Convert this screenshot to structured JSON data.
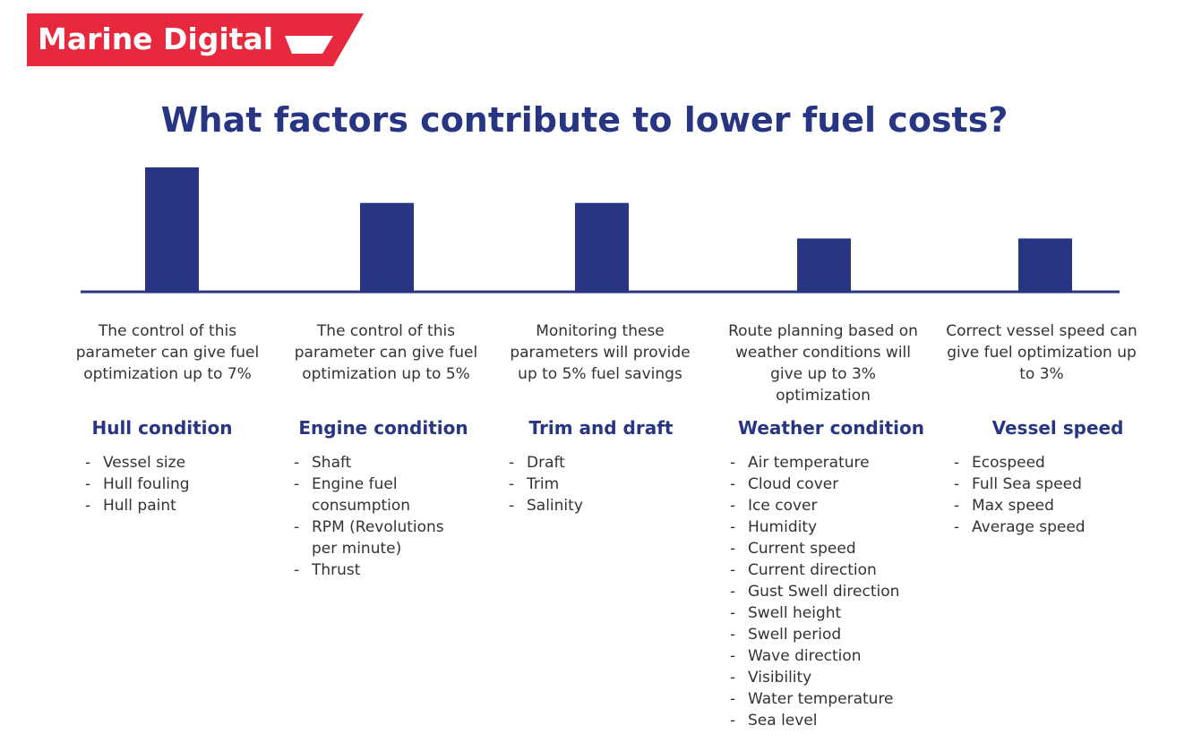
{
  "header": {
    "brand": "Marine Digital"
  },
  "chart_data": {
    "type": "bar",
    "title": "What factors contribute to lower fuel costs?",
    "categories": [
      "Hull condition",
      "Engine condition",
      "Trim and draft",
      "Weather condition",
      "Vessel speed"
    ],
    "values": [
      7,
      5,
      5,
      3,
      3
    ],
    "color": "#283583",
    "ylim": [
      0,
      7
    ],
    "descriptions": [
      "The control of this parameter can give fuel optimization up to 7%",
      "The control of this parameter can give fuel optimization up to 5%",
      "Monitoring these parameters will provide up to 5% fuel savings",
      "Route planning based on weather conditions will give up to 3% optimization",
      "Correct vessel speed can give fuel optimization up to 3%"
    ],
    "items": [
      [
        "Vessel size",
        "Hull fouling",
        "Hull paint"
      ],
      [
        "Shaft",
        "Engine fuel consumption",
        "RPM (Revolutions per minute)",
        "Thrust"
      ],
      [
        "Draft",
        "Trim",
        "Salinity"
      ],
      [
        "Air temperature",
        "Cloud cover",
        "Ice cover",
        "Humidity",
        "Current speed",
        "Current direction",
        "Gust Swell direction",
        "Swell height",
        "Swell period",
        "Wave direction",
        "Visibility",
        "Water temperature",
        "Sea level"
      ],
      [
        "Ecospeed",
        "Full Sea speed",
        "Max speed",
        "Average speed"
      ]
    ]
  }
}
